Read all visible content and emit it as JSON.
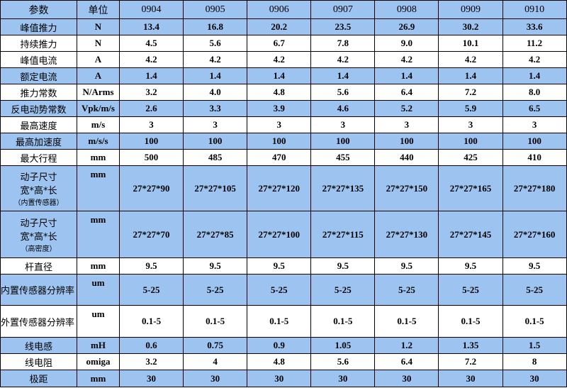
{
  "table": {
    "header": [
      "参数",
      "单位",
      "0904",
      "0905",
      "0906",
      "0907",
      "0908",
      "0909",
      "0910"
    ],
    "rows": [
      {
        "label": [
          "峰值推力"
        ],
        "unit": "N",
        "values": [
          "13.4",
          "16.8",
          "20.2",
          "23.5",
          "26.9",
          "30.2",
          "33.6"
        ]
      },
      {
        "label": [
          "持续推力"
        ],
        "unit": "N",
        "values": [
          "4.5",
          "5.6",
          "6.7",
          "7.8",
          "9.0",
          "10.1",
          "11.2"
        ]
      },
      {
        "label": [
          "峰值电流"
        ],
        "unit": "A",
        "values": [
          "4.2",
          "4.2",
          "4.2",
          "4.2",
          "4.2",
          "4.2",
          "4.2"
        ]
      },
      {
        "label": [
          "额定电流"
        ],
        "unit": "A",
        "values": [
          "1.4",
          "1.4",
          "1.4",
          "1.4",
          "1.4",
          "1.4",
          "1.4"
        ]
      },
      {
        "label": [
          "推力常数"
        ],
        "unit": "N/Arms",
        "values": [
          "3.2",
          "4.0",
          "4.8",
          "5.6",
          "6.4",
          "7.2",
          "8.0"
        ]
      },
      {
        "label": [
          "反电动势常数"
        ],
        "unit": "Vpk/m/s",
        "values": [
          "2.6",
          "3.3",
          "3.9",
          "4.6",
          "5.2",
          "5.9",
          "6.5"
        ]
      },
      {
        "label": [
          "最高速度"
        ],
        "unit": "m/s",
        "values": [
          "3",
          "3",
          "3",
          "3",
          "3",
          "3",
          "3"
        ]
      },
      {
        "label": [
          "最高加速度"
        ],
        "unit": "m/s/s",
        "values": [
          "100",
          "100",
          "100",
          "100",
          "100",
          "100",
          "100"
        ]
      },
      {
        "label": [
          "最大行程"
        ],
        "unit": "mm",
        "values": [
          "500",
          "485",
          "470",
          "455",
          "440",
          "425",
          "410"
        ]
      },
      {
        "label": [
          "动子尺寸",
          "宽*高*长",
          "（内置传感器）"
        ],
        "unit": "mm",
        "values": [
          "27*27*90",
          "27*27*105",
          "27*27*120",
          "27*27*135",
          "27*27*150",
          "27*27*165",
          "27*27*180"
        ]
      },
      {
        "label": [
          "动子尺寸",
          "宽*高*长",
          "（高密度）"
        ],
        "unit": "mm",
        "values": [
          "27*27*70",
          "27*27*85",
          "27*27*100",
          "27*27*115",
          "27*27*130",
          "27*27*145",
          "27*27*160"
        ]
      },
      {
        "label": [
          "杆直径"
        ],
        "unit": "mm",
        "values": [
          "9.5",
          "9.5",
          "9.5",
          "9.5",
          "9.5",
          "9.5",
          "9.5"
        ]
      },
      {
        "label": [
          "内置传感器分辨率"
        ],
        "unit": "um",
        "values": [
          "5-25",
          "5-25",
          "5-25",
          "5-25",
          "5-25",
          "5-25",
          "5-25"
        ]
      },
      {
        "label": [
          "外置传感器分辨率"
        ],
        "unit": "um",
        "values": [
          "0.1-5",
          "0.1-5",
          "0.1-5",
          "0.1-5",
          "0.1-5",
          "0.1-5",
          "0.1-5"
        ]
      },
      {
        "label": [
          "线电感"
        ],
        "unit": "mH",
        "values": [
          "0.6",
          "0.75",
          "0.9",
          "1.05",
          "1.2",
          "1.35",
          "1.5"
        ]
      },
      {
        "label": [
          "线电阻"
        ],
        "unit": "omiga",
        "values": [
          "3.2",
          "4",
          "4.8",
          "5.6",
          "6.4",
          "7.2",
          "8"
        ]
      },
      {
        "label": [
          "极距"
        ],
        "unit": "mm",
        "values": [
          "30",
          "30",
          "30",
          "30",
          "30",
          "30",
          "30"
        ]
      }
    ]
  }
}
